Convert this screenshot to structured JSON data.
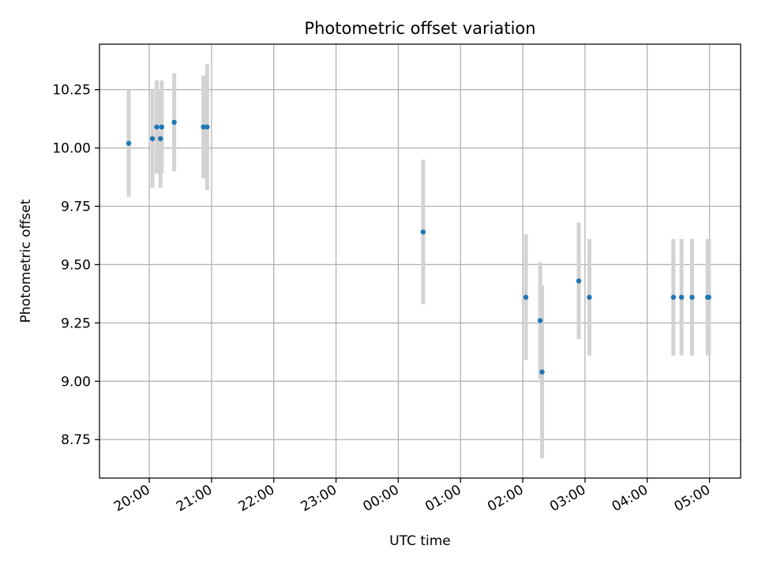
{
  "chart_data": {
    "type": "scatter",
    "title": "Photometric offset variation",
    "xlabel": "UTC time",
    "ylabel": "Photometric offset",
    "grid": true,
    "x_unit": "hours after 19:00 UTC",
    "xlim": [
      0.2,
      10.5
    ],
    "ylim": [
      8.585,
      10.445
    ],
    "x_ticks": [
      {
        "value": 1,
        "label": "20:00"
      },
      {
        "value": 2,
        "label": "21:00"
      },
      {
        "value": 3,
        "label": "22:00"
      },
      {
        "value": 4,
        "label": "23:00"
      },
      {
        "value": 5,
        "label": "00:00"
      },
      {
        "value": 6,
        "label": "01:00"
      },
      {
        "value": 7,
        "label": "02:00"
      },
      {
        "value": 8,
        "label": "03:00"
      },
      {
        "value": 9,
        "label": "04:00"
      },
      {
        "value": 10,
        "label": "05:00"
      }
    ],
    "y_ticks": [
      {
        "value": 8.75,
        "label": "8.75"
      },
      {
        "value": 9.0,
        "label": "9.00"
      },
      {
        "value": 9.25,
        "label": "9.25"
      },
      {
        "value": 9.5,
        "label": "9.50"
      },
      {
        "value": 9.75,
        "label": "9.75"
      },
      {
        "value": 10.0,
        "label": "10.00"
      },
      {
        "value": 10.25,
        "label": "10.25"
      }
    ],
    "series": [
      {
        "name": "offset",
        "color": "#1f77b4",
        "errorbar_color": "#d3d3d3",
        "points": [
          {
            "x": 0.67,
            "y": 10.02,
            "err": 0.23
          },
          {
            "x": 1.05,
            "y": 10.04,
            "err": 0.21
          },
          {
            "x": 1.12,
            "y": 10.09,
            "err": 0.2
          },
          {
            "x": 1.18,
            "y": 10.04,
            "err": 0.21
          },
          {
            "x": 1.2,
            "y": 10.09,
            "err": 0.2
          },
          {
            "x": 1.4,
            "y": 10.11,
            "err": 0.21
          },
          {
            "x": 1.87,
            "y": 10.09,
            "err": 0.22
          },
          {
            "x": 1.93,
            "y": 10.09,
            "err": 0.27
          },
          {
            "x": 5.4,
            "y": 9.64,
            "err": 0.31
          },
          {
            "x": 7.05,
            "y": 9.36,
            "err": 0.27
          },
          {
            "x": 7.28,
            "y": 9.26,
            "err": 0.25
          },
          {
            "x": 7.31,
            "y": 9.04,
            "err": 0.37
          },
          {
            "x": 7.9,
            "y": 9.43,
            "err": 0.25
          },
          {
            "x": 8.07,
            "y": 9.36,
            "err": 0.25
          },
          {
            "x": 9.42,
            "y": 9.36,
            "err": 0.25
          },
          {
            "x": 9.55,
            "y": 9.36,
            "err": 0.25
          },
          {
            "x": 9.72,
            "y": 9.36,
            "err": 0.25
          },
          {
            "x": 9.97,
            "y": 9.36,
            "err": 0.25
          },
          {
            "x": 9.99,
            "y": 9.36,
            "err": 0.25
          }
        ]
      }
    ]
  }
}
